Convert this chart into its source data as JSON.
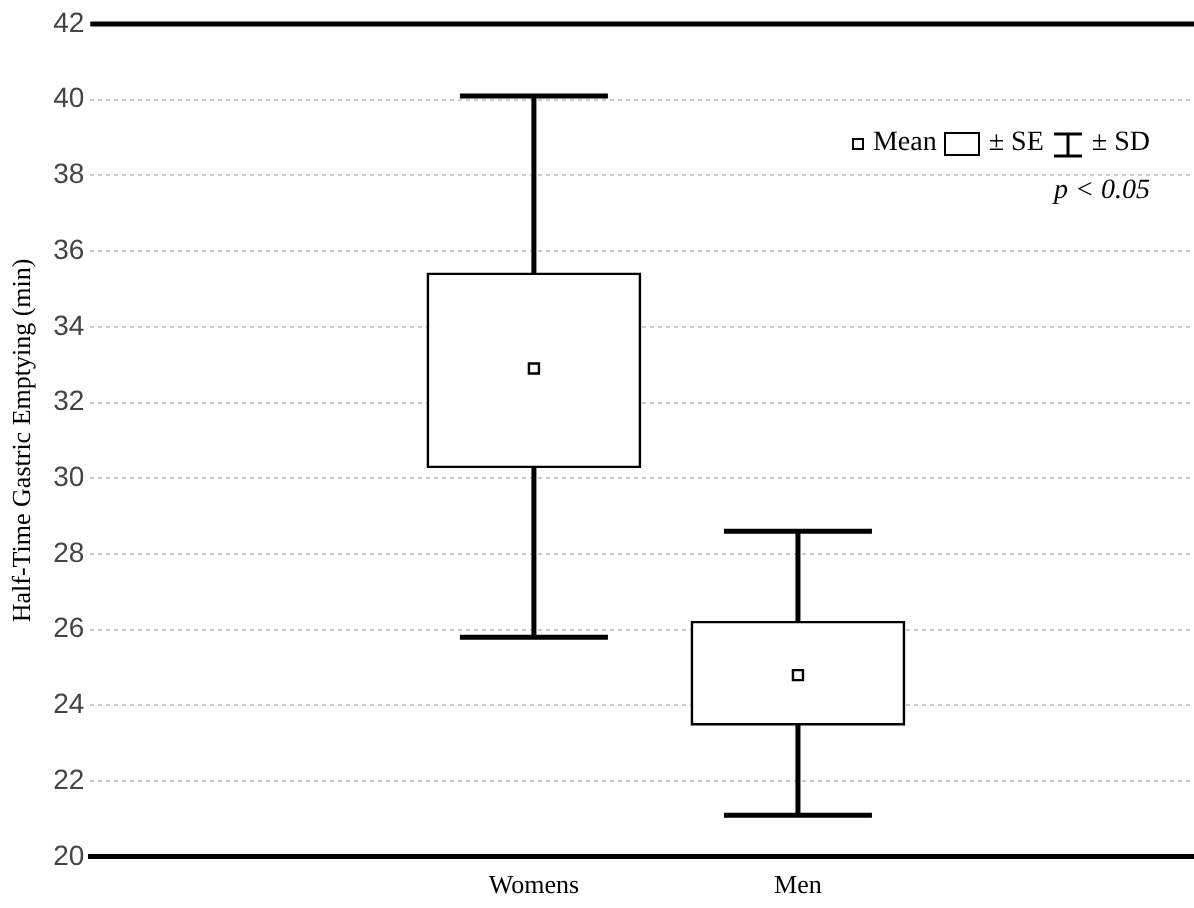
{
  "chart_data": {
    "type": "box",
    "ylabel": "Half-Time Gastric Emptying (min)",
    "categories": [
      "Womens",
      "Men"
    ],
    "boxes": [
      {
        "low": 25.8,
        "q1": 30.3,
        "median": 32.9,
        "q3": 35.4,
        "high": 40.1
      },
      {
        "low": 21.1,
        "q1": 23.5,
        "median": 24.8,
        "q3": 26.2,
        "high": 28.6
      }
    ],
    "ylim": [
      20,
      42
    ],
    "yticks": [
      20,
      22,
      24,
      26,
      28,
      30,
      32,
      34,
      36,
      38,
      40,
      42
    ],
    "grid": "y",
    "annotations": [
      "Mean",
      "± SE",
      "± SD",
      "p < 0.05"
    ]
  }
}
